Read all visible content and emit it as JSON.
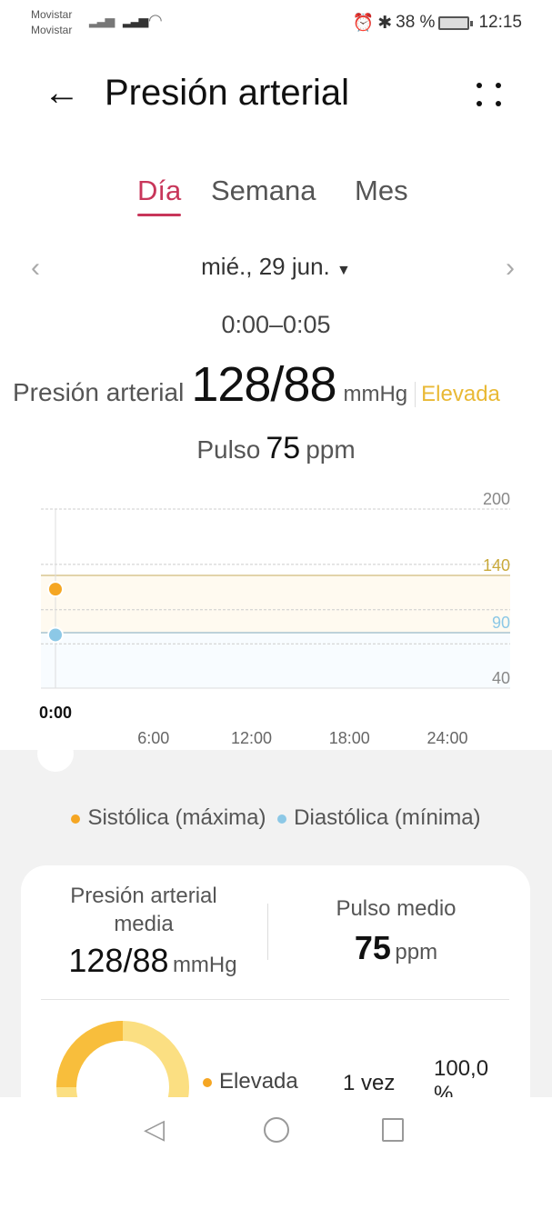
{
  "status_bar": {
    "carrier_1": "Movistar",
    "carrier_2": "Movistar",
    "battery": "38 %",
    "time": "12:15",
    "icons": [
      "signal-icon",
      "signal-icon",
      "wifi-icon",
      "alarm-icon",
      "bluetooth-icon",
      "battery-icon"
    ]
  },
  "header": {
    "title": "Presión arterial",
    "back_icon": "arrow-left-icon",
    "more_icon": "more-dots-icon"
  },
  "tabs": [
    {
      "label": "Día",
      "active": true
    },
    {
      "label": "Semana",
      "active": false
    },
    {
      "label": "Mes",
      "active": false
    }
  ],
  "date": {
    "label": "mié., 29 jun.",
    "range": "0:00–0:05"
  },
  "reading": {
    "label": "Presión arterial",
    "value": "128/88",
    "unit": "mmHg",
    "status": "Elevada",
    "pulse_label": "Pulso",
    "pulse_value": "75",
    "pulse_unit": "ppm"
  },
  "colors": {
    "accent": "#c8365a",
    "systolic": "#f5a623",
    "diastolic": "#8cc8e6",
    "elevated": "#e9b935"
  },
  "chart_data": {
    "type": "scatter",
    "x_ticks": [
      "0:00",
      "6:00",
      "12:00",
      "18:00",
      "24:00"
    ],
    "y_ticks": [
      200,
      140,
      90,
      40
    ],
    "ylim": [
      40,
      200
    ],
    "reference_lines": [
      140,
      90
    ],
    "grid": true,
    "series": [
      {
        "name": "Sistólica (máxima)",
        "points": [
          {
            "x": "0:00",
            "y": 128
          }
        ]
      },
      {
        "name": "Diastólica (mínima)",
        "points": [
          {
            "x": "0:00",
            "y": 88
          }
        ]
      }
    ]
  },
  "legend": {
    "systolic": "Sistólica (máxima)",
    "diastolic": "Diastólica (mínima)"
  },
  "summary": {
    "avg_bp_label": "Presión arterial media",
    "avg_bp_value": "128/88",
    "avg_bp_unit": "mmHg",
    "avg_pulse_label": "Pulso medio",
    "avg_pulse_value": "75",
    "avg_pulse_unit": "ppm"
  },
  "distribution": [
    {
      "label": "Elevada",
      "count": "1 vez",
      "percent": "100,0 %",
      "fraction": 1.0
    }
  ]
}
